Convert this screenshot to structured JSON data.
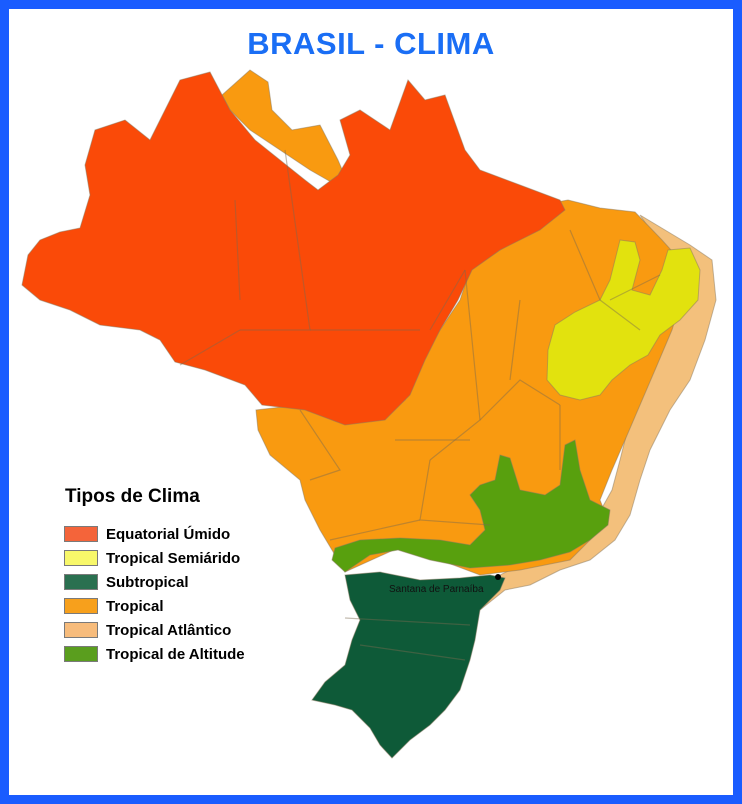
{
  "title": "BRASIL - CLIMA",
  "legend": {
    "title": "Tipos de Clima",
    "items": [
      {
        "label": "Equatorial Úmido",
        "color": "#f4643a"
      },
      {
        "label": "Tropical Semiárido",
        "color": "#f8f86a"
      },
      {
        "label": "Subtropical",
        "color": "#2a7050"
      },
      {
        "label": "Tropical",
        "color": "#f7a01c"
      },
      {
        "label": "Tropical Atlântico",
        "color": "#f7bc7c"
      },
      {
        "label": "Tropical de Altitude",
        "color": "#5a9e1e"
      }
    ]
  },
  "map": {
    "regions": [
      {
        "climate": "Equatorial Úmido",
        "color": "#fa4a08"
      },
      {
        "climate": "Tropical",
        "color": "#f99a10"
      },
      {
        "climate": "Tropical Atlântico",
        "color": "#f3c07c"
      },
      {
        "climate": "Tropical Semiárido",
        "color": "#e2e20e"
      },
      {
        "climate": "Tropical de Altitude",
        "color": "#58a00e"
      },
      {
        "climate": "Subtropical",
        "color": "#0e5a38"
      }
    ],
    "city": {
      "name": "Santana de Parnaíba"
    }
  }
}
